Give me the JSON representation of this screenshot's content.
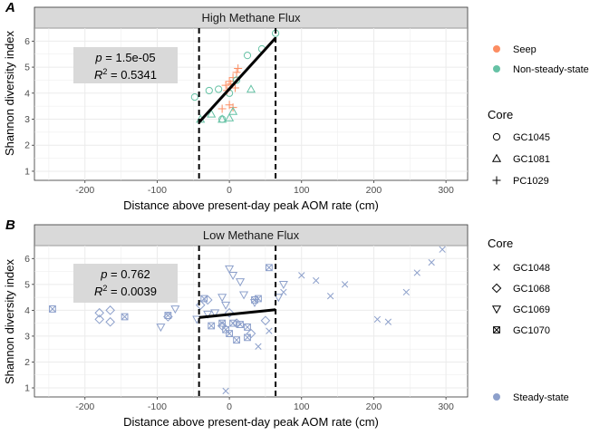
{
  "figure": {
    "x_axis_label": "Distance above present-day peak AOM rate (cm)",
    "y_axis_label": "Shannon diversity index",
    "x_ticks": [
      -200,
      -100,
      0,
      100,
      200,
      300
    ],
    "y_ticks": [
      1,
      2,
      3,
      4,
      5,
      6
    ],
    "vlines": [
      -42,
      64
    ]
  },
  "chart_data": [
    {
      "type": "scatter",
      "panel_letter": "A",
      "title": "High Methane Flux",
      "xlabel": "Distance above present-day peak AOM rate (cm)",
      "ylabel": "Shannon diversity index",
      "xlim": [
        -270,
        330
      ],
      "ylim": [
        0.65,
        6.5
      ],
      "grid": true,
      "stat_label": "p = 1.5e-05",
      "stat_p": "1.5e-05",
      "stat_r2": "0.5341",
      "fit_line": {
        "x": [
          -42,
          64
        ],
        "y": [
          2.88,
          6.12
        ]
      },
      "series": [
        {
          "name": "Seep",
          "core": "PC1029",
          "shape": "plus",
          "color": "#fc8d62",
          "points": [
            [
              -5,
              4.3
            ],
            [
              0,
              4.45
            ],
            [
              5,
              4.6
            ],
            [
              10,
              4.8
            ],
            [
              12,
              4.95
            ],
            [
              -3,
              4.1
            ],
            [
              2,
              4.35
            ],
            [
              8,
              4.2
            ],
            [
              -10,
              3.4
            ],
            [
              0,
              3.55
            ],
            [
              5,
              3.45
            ]
          ]
        },
        {
          "name": "Non-steady-state",
          "core": "GC1045",
          "shape": "circle",
          "color": "#66c2a5",
          "points": [
            [
              -48,
              3.85
            ],
            [
              -28,
              4.1
            ],
            [
              -15,
              4.15
            ],
            [
              0,
              4.0
            ],
            [
              -10,
              3.0
            ],
            [
              10,
              4.5
            ],
            [
              25,
              5.45
            ],
            [
              45,
              5.7
            ],
            [
              64,
              6.3
            ]
          ]
        },
        {
          "name": "Non-steady-state",
          "core": "GC1081",
          "shape": "triangle",
          "color": "#66c2a5",
          "points": [
            [
              -40,
              3.0
            ],
            [
              -25,
              3.2
            ],
            [
              -10,
              3.0
            ],
            [
              0,
              3.05
            ],
            [
              5,
              3.3
            ],
            [
              30,
              4.15
            ]
          ]
        }
      ]
    },
    {
      "type": "scatter",
      "panel_letter": "B",
      "title": "Low Methane Flux",
      "xlabel": "Distance above present-day peak AOM rate (cm)",
      "ylabel": "Shannon diversity index",
      "xlim": [
        -270,
        330
      ],
      "ylim": [
        0.65,
        6.5
      ],
      "grid": true,
      "stat_p": "0.762",
      "stat_r2": "0.0039",
      "fit_line": {
        "x": [
          -42,
          64
        ],
        "y": [
          3.72,
          4.02
        ]
      },
      "series": [
        {
          "name": "Steady-state",
          "core": "GC1048",
          "shape": "cross",
          "color": "#8da0cb",
          "points": [
            [
              -5,
              0.88
            ],
            [
              40,
              2.6
            ],
            [
              55,
              3.2
            ],
            [
              75,
              4.7
            ],
            [
              100,
              5.35
            ],
            [
              120,
              5.15
            ],
            [
              140,
              4.55
            ],
            [
              160,
              5.0
            ],
            [
              205,
              3.65
            ],
            [
              220,
              3.55
            ],
            [
              245,
              4.7
            ],
            [
              260,
              5.45
            ],
            [
              280,
              5.85
            ],
            [
              295,
              6.35
            ]
          ]
        },
        {
          "name": "Steady-state",
          "core": "GC1068",
          "shape": "diamond",
          "color": "#8da0cb",
          "points": [
            [
              -180,
              3.9
            ],
            [
              -180,
              3.65
            ],
            [
              -165,
              4.0
            ],
            [
              -165,
              3.55
            ],
            [
              -85,
              3.75
            ],
            [
              -40,
              4.2
            ],
            [
              -30,
              4.4
            ],
            [
              0,
              3.9
            ],
            [
              -10,
              3.4
            ],
            [
              10,
              3.5
            ],
            [
              30,
              3.1
            ],
            [
              50,
              3.6
            ]
          ]
        },
        {
          "name": "Steady-state",
          "core": "GC1069",
          "shape": "triangle-down",
          "color": "#8da0cb",
          "points": [
            [
              -95,
              3.35
            ],
            [
              -75,
              4.05
            ],
            [
              -45,
              3.65
            ],
            [
              -30,
              3.85
            ],
            [
              -20,
              3.9
            ],
            [
              -5,
              4.2
            ],
            [
              -10,
              4.5
            ],
            [
              0,
              5.6
            ],
            [
              5,
              5.35
            ],
            [
              15,
              5.1
            ],
            [
              20,
              4.6
            ],
            [
              35,
              4.3
            ],
            [
              75,
              5.0
            ],
            [
              68,
              4.5
            ]
          ]
        },
        {
          "name": "Steady-state",
          "core": "GC1070",
          "shape": "boxx",
          "color": "#8da0cb",
          "points": [
            [
              -245,
              4.05
            ],
            [
              -145,
              3.75
            ],
            [
              -85,
              3.8
            ],
            [
              -35,
              4.45
            ],
            [
              -25,
              3.4
            ],
            [
              -10,
              3.5
            ],
            [
              -5,
              3.25
            ],
            [
              0,
              3.1
            ],
            [
              5,
              3.5
            ],
            [
              15,
              3.45
            ],
            [
              25,
              3.35
            ],
            [
              35,
              4.4
            ],
            [
              40,
              4.45
            ],
            [
              10,
              2.85
            ],
            [
              25,
              2.95
            ],
            [
              55,
              5.65
            ]
          ]
        }
      ]
    }
  ],
  "legends": {
    "panel_a_color": {
      "items": [
        {
          "label": "Seep",
          "color": "#fc8d62"
        },
        {
          "label": "Non-steady-state",
          "color": "#66c2a5"
        }
      ]
    },
    "panel_a_core": {
      "title": "Core",
      "items": [
        {
          "label": "GC1045",
          "shape": "circle"
        },
        {
          "label": "GC1081",
          "shape": "triangle"
        },
        {
          "label": "PC1029",
          "shape": "plus"
        }
      ]
    },
    "panel_b_core": {
      "title": "Core",
      "items": [
        {
          "label": "GC1048",
          "shape": "cross"
        },
        {
          "label": "GC1068",
          "shape": "diamond"
        },
        {
          "label": "GC1069",
          "shape": "triangle-down"
        },
        {
          "label": "GC1070",
          "shape": "boxx"
        }
      ]
    },
    "panel_b_color": {
      "items": [
        {
          "label": "Steady-state",
          "color": "#8da0cb"
        }
      ]
    }
  }
}
